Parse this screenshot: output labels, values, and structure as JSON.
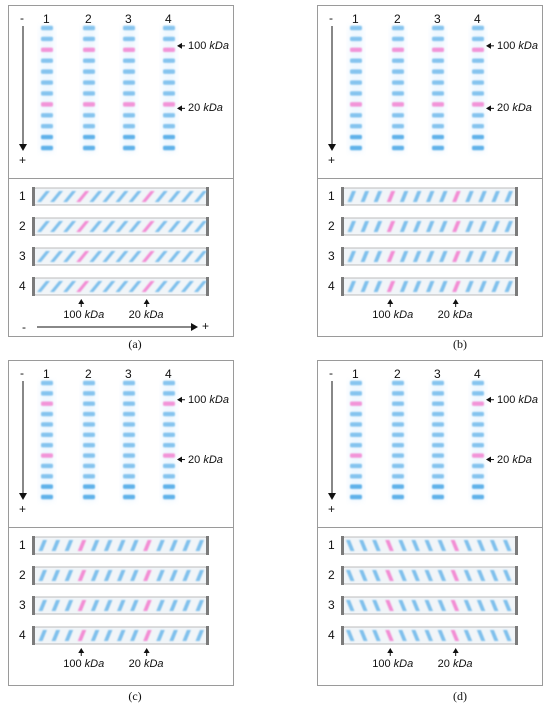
{
  "panels": [
    {
      "caption": "(a)",
      "lanes": [
        "1",
        "2",
        "3",
        "4"
      ],
      "rows": [
        "1",
        "2",
        "3",
        "4"
      ],
      "marker_high": {
        "value": "100",
        "unit": "kDa"
      },
      "marker_low": {
        "value": "20",
        "unit": "kDa"
      },
      "sign_top": "-",
      "sign_bottom": "+",
      "sign_left": "-",
      "sign_right": "+"
    },
    {
      "caption": "(b)",
      "lanes": [
        "1",
        "2",
        "3",
        "4"
      ],
      "rows": [
        "1",
        "2",
        "3",
        "4"
      ],
      "marker_high": {
        "value": "100",
        "unit": "kDa"
      },
      "marker_low": {
        "value": "20",
        "unit": "kDa"
      },
      "sign_top": "-",
      "sign_bottom": "+"
    },
    {
      "caption": "(c)",
      "lanes": [
        "1",
        "2",
        "3",
        "4"
      ],
      "rows": [
        "1",
        "2",
        "3",
        "4"
      ],
      "marker_high": {
        "value": "100",
        "unit": "kDa"
      },
      "marker_low": {
        "value": "20",
        "unit": "kDa"
      },
      "sign_top": "-",
      "sign_bottom": "+"
    },
    {
      "caption": "(d)",
      "lanes": [
        "1",
        "2",
        "3",
        "4"
      ],
      "rows": [
        "1",
        "2",
        "3",
        "4"
      ],
      "marker_high": {
        "value": "100",
        "unit": "kDa"
      },
      "marker_low": {
        "value": "20",
        "unit": "kDa"
      },
      "sign_top": "-",
      "sign_bottom": "+"
    }
  ],
  "colors": {
    "blue_band": "#58aee8",
    "pink_band": "#f36ac8",
    "border": "#9a9a9a"
  }
}
